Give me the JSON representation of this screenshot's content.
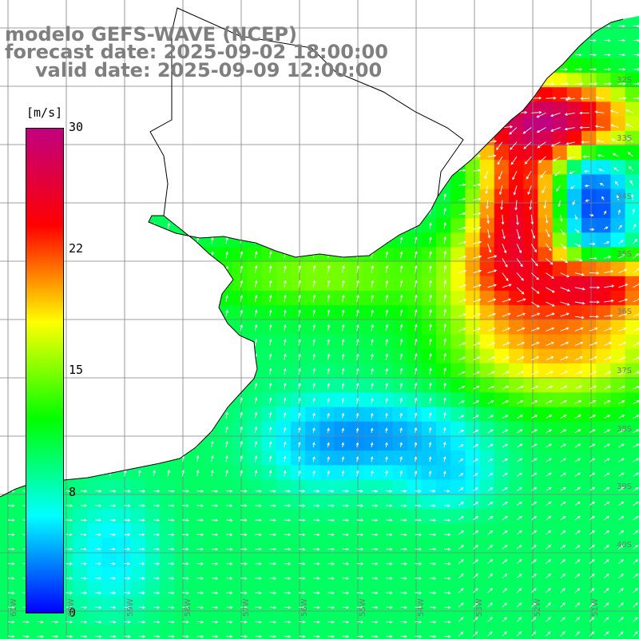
{
  "title": "modelo GEFS-WAVE (NCEP)",
  "forecast_line": "forecast date: 2025-09-02 18:00:00",
  "valid_line": "valid date: 2025-09-09 12:00:00",
  "variable": "10 m wind speed with direction arrows",
  "colorbar": {
    "units": "[m/s]",
    "ticks": [
      "30",
      "22",
      "15",
      "8",
      "0"
    ],
    "min": 0,
    "max": 30,
    "palette": [
      "#0000ff",
      "#00ffff",
      "#00ff00",
      "#ffff00",
      "#ff0000",
      "#c00080"
    ]
  },
  "lon_labels": [
    "61W",
    "60W",
    "59W",
    "58W",
    "57W",
    "56W",
    "55W",
    "54W",
    "53W",
    "52W",
    "51W"
  ],
  "lat_labels": [
    "32S",
    "33S",
    "34S",
    "35S",
    "36S",
    "37S",
    "38S",
    "39S",
    "40S"
  ],
  "colors": {
    "land": "#ffffff",
    "coast": "#000000",
    "grid": "#808080",
    "arrows": "#ffffff",
    "title": "#7f7f7f"
  }
}
